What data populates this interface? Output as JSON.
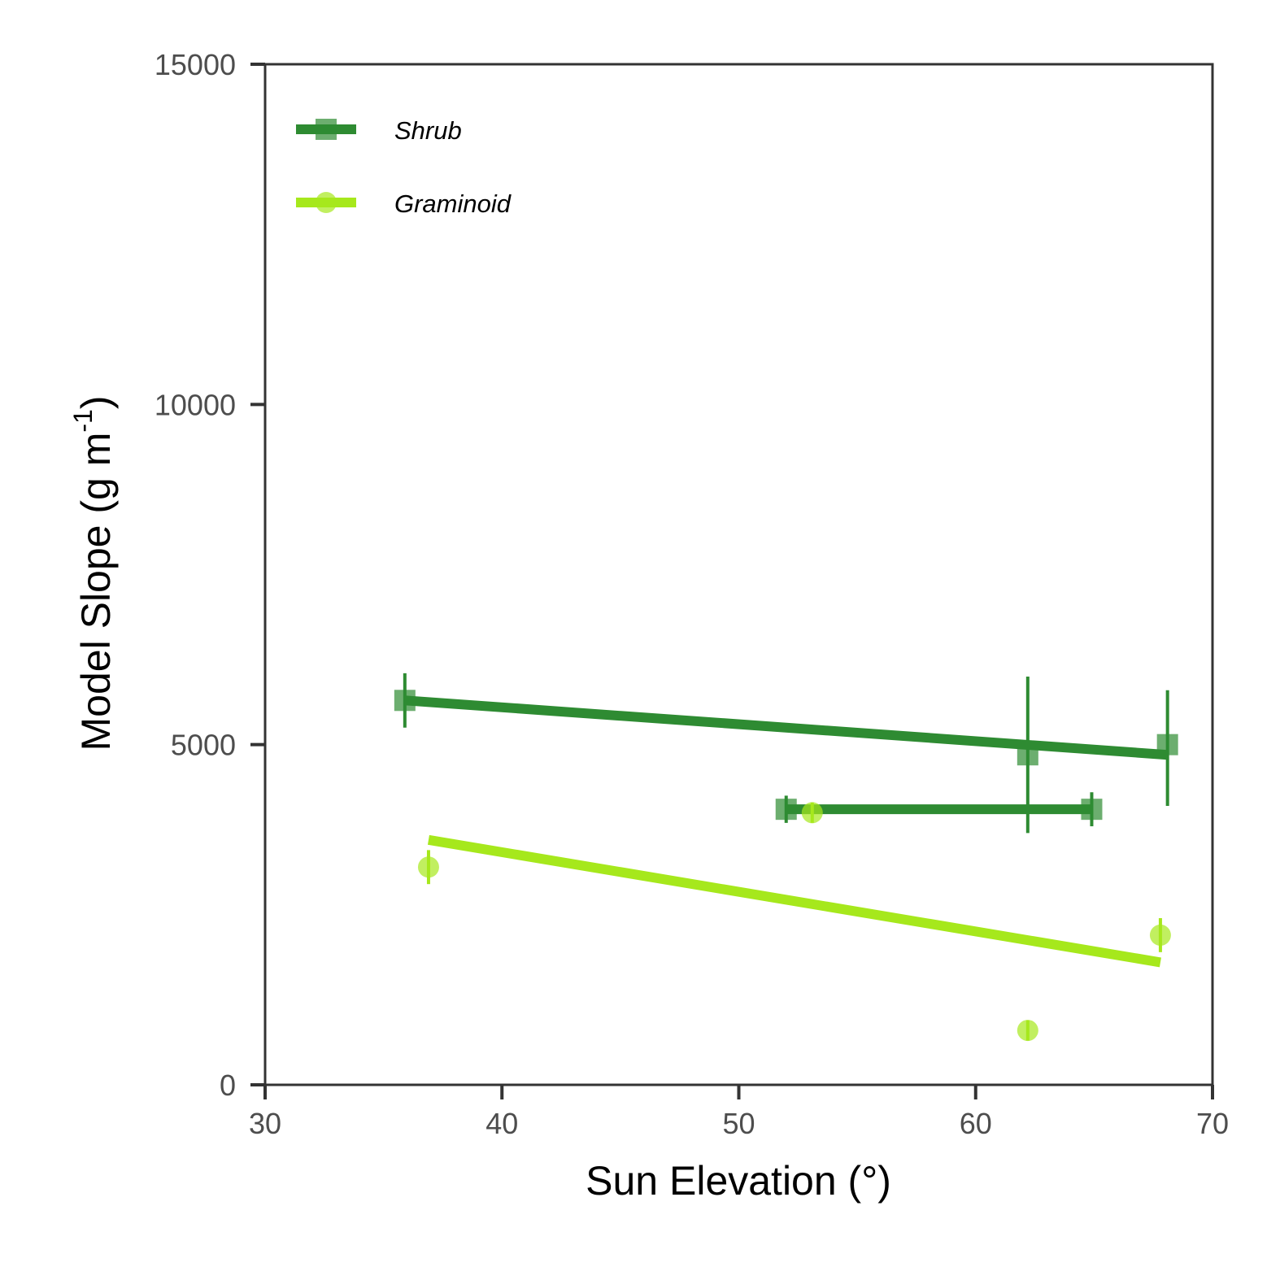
{
  "chart_data": {
    "type": "scatter",
    "title": "",
    "xlabel": "Sun Elevation (°)",
    "ylabel": {
      "main": "Model Slope (g m",
      "sup": "-1",
      "close": ")"
    },
    "xlim": [
      30,
      70
    ],
    "ylim": [
      0,
      15000
    ],
    "xticks": [
      "30",
      "40",
      "50",
      "60",
      "70"
    ],
    "yticks": [
      "0",
      "5000",
      "10000",
      "15000"
    ],
    "grid": false,
    "legend_position": "top-left",
    "series": [
      {
        "name": "Shrub",
        "color": "#2e8b32",
        "marker": "square",
        "points": [
          {
            "x": 35.9,
            "y": 5650,
            "ylow": 5250,
            "yhigh": 6050
          },
          {
            "x": 52.0,
            "y": 4050,
            "ylow": 3850,
            "yhigh": 4250
          },
          {
            "x": 62.2,
            "y": 4850,
            "ylow": 3700,
            "yhigh": 6000
          },
          {
            "x": 64.9,
            "y": 4050,
            "ylow": 3800,
            "yhigh": 4300
          },
          {
            "x": 68.1,
            "y": 5000,
            "ylow": 4100,
            "yhigh": 5800
          }
        ],
        "fits": [
          {
            "x": [
              35.9,
              68.1
            ],
            "y": [
              5650,
              4850
            ]
          },
          {
            "x": [
              52.0,
              64.9
            ],
            "y": [
              4050,
              4050
            ]
          }
        ]
      },
      {
        "name": "Graminoid",
        "color": "#a6e81c",
        "marker": "circle",
        "points": [
          {
            "x": 36.9,
            "y": 3200,
            "ylow": 2950,
            "yhigh": 3450
          },
          {
            "x": 53.1,
            "y": 4000,
            "ylow": 3850,
            "yhigh": 4150
          },
          {
            "x": 62.2,
            "y": 800,
            "ylow": 650,
            "yhigh": 950
          },
          {
            "x": 67.8,
            "y": 2200,
            "ylow": 1950,
            "yhigh": 2450
          }
        ],
        "fits": [
          {
            "x": [
              36.9,
              67.8
            ],
            "y": [
              3600,
              1800
            ]
          }
        ]
      }
    ]
  }
}
